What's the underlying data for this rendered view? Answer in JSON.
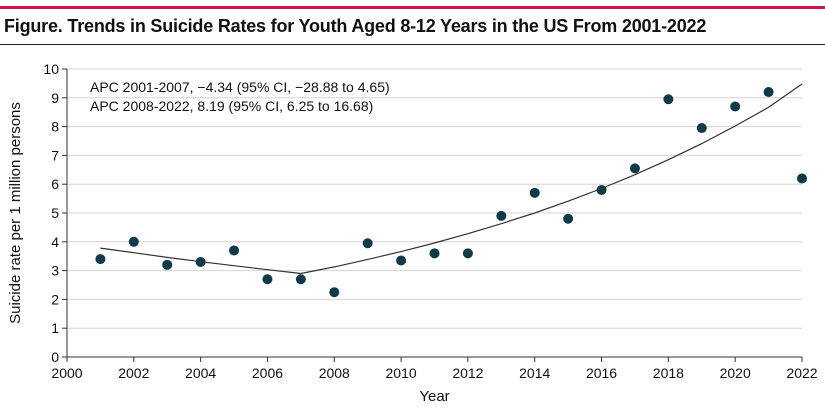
{
  "figure": {
    "title": "Figure. Trends in Suicide Rates for Youth Aged 8-12 Years in the US From 2001-2022",
    "accent_color": "#d6124a"
  },
  "chart_data": {
    "type": "scatter",
    "title": "Figure. Trends in Suicide Rates for Youth Aged 8-12 Years in the US From 2001-2022",
    "xlabel": "Year",
    "ylabel": "Suicide rate per 1 million persons",
    "xlim": [
      2000,
      2022
    ],
    "ylim": [
      0,
      10
    ],
    "x_ticks": [
      2000,
      2002,
      2004,
      2006,
      2008,
      2010,
      2012,
      2014,
      2016,
      2018,
      2020,
      2022
    ],
    "y_ticks": [
      0,
      1,
      2,
      3,
      4,
      5,
      6,
      7,
      8,
      9,
      10
    ],
    "grid": true,
    "point_color": "#0f3a4a",
    "points": [
      {
        "x": 2001,
        "y": 3.4
      },
      {
        "x": 2002,
        "y": 4.0
      },
      {
        "x": 2003,
        "y": 3.2
      },
      {
        "x": 2004,
        "y": 3.3
      },
      {
        "x": 2005,
        "y": 3.7
      },
      {
        "x": 2006,
        "y": 2.7
      },
      {
        "x": 2007,
        "y": 2.7
      },
      {
        "x": 2008,
        "y": 2.25
      },
      {
        "x": 2009,
        "y": 3.95
      },
      {
        "x": 2010,
        "y": 3.35
      },
      {
        "x": 2011,
        "y": 3.6
      },
      {
        "x": 2012,
        "y": 3.6
      },
      {
        "x": 2013,
        "y": 4.9
      },
      {
        "x": 2014,
        "y": 5.7
      },
      {
        "x": 2015,
        "y": 4.8
      },
      {
        "x": 2016,
        "y": 5.8
      },
      {
        "x": 2017,
        "y": 6.55
      },
      {
        "x": 2018,
        "y": 8.95
      },
      {
        "x": 2019,
        "y": 7.95
      },
      {
        "x": 2020,
        "y": 8.7
      },
      {
        "x": 2021,
        "y": 9.2
      },
      {
        "x": 2022,
        "y": 6.2
      }
    ],
    "trend_segments": [
      {
        "x": [
          2001,
          2002,
          2003,
          2004,
          2005,
          2006,
          2007
        ],
        "y": [
          3.78,
          3.62,
          3.46,
          3.31,
          3.17,
          3.03,
          2.9
        ]
      },
      {
        "x": [
          2007,
          2008,
          2009,
          2010,
          2011,
          2012,
          2013,
          2014,
          2015,
          2016,
          2017,
          2018,
          2019,
          2020,
          2021,
          2022
        ],
        "y": [
          2.9,
          3.13,
          3.39,
          3.66,
          3.96,
          4.28,
          4.63,
          5.0,
          5.41,
          5.85,
          6.33,
          6.85,
          7.41,
          8.02,
          8.67,
          9.48
        ]
      }
    ],
    "annotations": [
      "APC 2001-2007, −4.34 (95% CI, −28.88 to 4.65)",
      "APC 2008-2022, 8.19 (95% CI, 6.25 to 16.68)"
    ]
  }
}
